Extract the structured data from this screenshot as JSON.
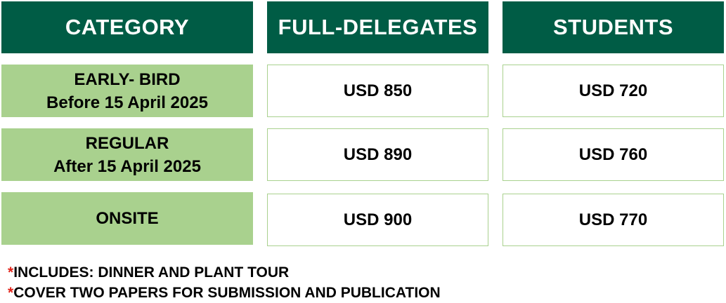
{
  "header": {
    "category": "CATEGORY",
    "full_delegates": "FULL-DELEGATES",
    "students": "STUDENTS"
  },
  "rows": [
    {
      "category_line1": "EARLY- BIRD",
      "category_line2": "Before 15 April 2025",
      "full_delegates": "USD 850",
      "students": "USD 720"
    },
    {
      "category_line1": "REGULAR",
      "category_line2": "After 15 April 2025",
      "full_delegates": "USD 890",
      "students": "USD 760"
    },
    {
      "category_line1": "ONSITE",
      "category_line2": "",
      "full_delegates": "USD 900",
      "students": "USD 770"
    }
  ],
  "notes": [
    {
      "marker": "*",
      "text": "INCLUDES: DINNER AND PLANT TOUR"
    },
    {
      "marker": "*",
      "text": "COVER TWO PAPERS FOR SUBMISSION AND PUBLICATION"
    }
  ],
  "colors": {
    "header_bg": "#005c45",
    "category_bg": "#a9d18e",
    "marker": "#e2231a"
  }
}
